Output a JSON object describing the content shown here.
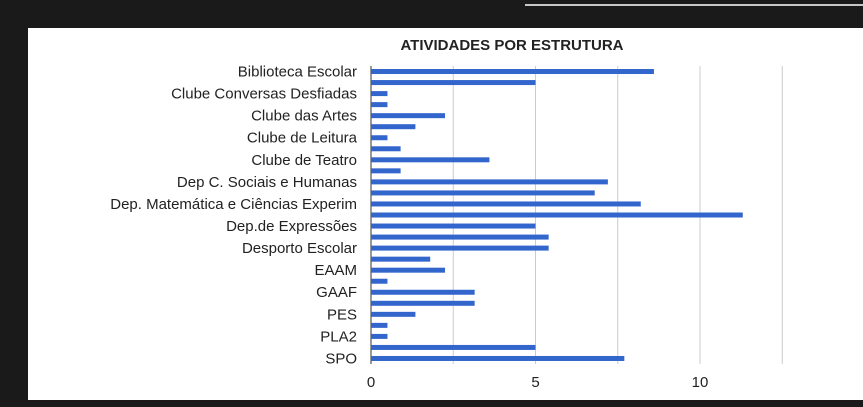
{
  "chart_data": {
    "type": "bar",
    "orientation": "horizontal",
    "title": "ATIVIDADES POR ESTRUTURA",
    "categories": [
      "Biblioteca Escolar",
      null,
      "Clube Conversas Desfiadas",
      null,
      "Clube das Artes",
      null,
      "Clube de Leitura",
      null,
      "Clube de Teatro",
      null,
      "Dep C. Sociais e Humanas",
      null,
      "Dep. Matemática e Ciências Experim",
      null,
      "Dep.de Expressões",
      null,
      "Desporto Escolar",
      null,
      "EAAM",
      null,
      "GAAF",
      null,
      "PES",
      null,
      "PLA2",
      null,
      "SPO"
    ],
    "values": [
      8.6,
      5,
      0.5,
      0.5,
      2.25,
      1.35,
      0.5,
      0.9,
      3.6,
      0.9,
      7.2,
      6.8,
      8.2,
      11.3,
      5,
      5.4,
      5.4,
      1.8,
      2.25,
      0.5,
      3.15,
      3.15,
      1.35,
      0.5,
      0.5,
      5,
      7.7
    ],
    "color": "#3366cc",
    "xlim": [
      0,
      15
    ],
    "xticks": [
      0,
      5,
      10
    ],
    "xgrid": [
      0,
      2.5,
      5,
      7.5,
      10,
      12.5,
      15
    ],
    "grid": true
  }
}
